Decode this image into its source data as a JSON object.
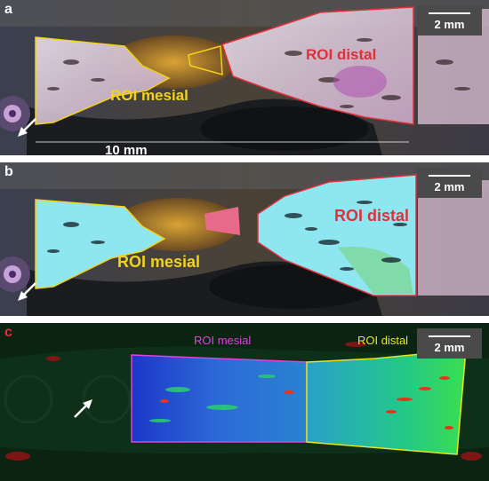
{
  "panels": {
    "a": {
      "label": "a",
      "scale_bar": "2 mm",
      "roi_mesial": "ROI mesial",
      "roi_distal": "ROI distal",
      "measurement": "10 mm"
    },
    "b": {
      "label": "b",
      "scale_bar": "2 mm",
      "roi_mesial": "ROI mesial",
      "roi_distal": "ROI distal"
    },
    "c": {
      "label": "c",
      "scale_bar": "2 mm",
      "roi_mesial": "ROI mesial",
      "roi_distal": "ROI distal"
    }
  },
  "icons": [
    "arrow-icon"
  ],
  "colors": {
    "mesial_outline_a": "#f2d21a",
    "distal_outline_a": "#e0303c",
    "mesial_text_a": "#f2d21a",
    "distal_text_a": "#e0303c",
    "mesial_text_c": "#e040e0",
    "distal_text_c": "#e6e61a",
    "map_low": "#1b38c8",
    "map_mid": "#22c88a",
    "map_high": "#e8341c"
  }
}
